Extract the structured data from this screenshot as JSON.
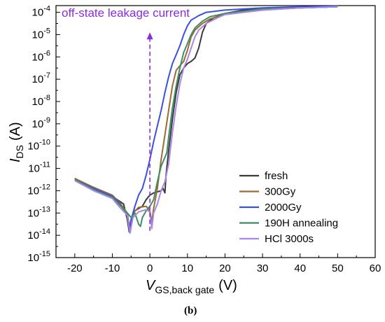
{
  "chart_data": {
    "type": "line",
    "y_scale": "log",
    "xlabel_main": "V",
    "xlabel_sub": "GS,back gate",
    "xlabel_unit": "(V)",
    "ylabel_main": "I",
    "ylabel_sub": "DS",
    "ylabel_unit": "(A)",
    "xlim": [
      -25,
      60
    ],
    "ylim_exp": [
      -15,
      -3.7
    ],
    "x_ticks": [
      -20,
      -10,
      0,
      10,
      20,
      30,
      40,
      50,
      60
    ],
    "x_tick_labels": [
      "-20",
      "-10",
      "0",
      "10",
      "20",
      "30",
      "40",
      "50",
      "60"
    ],
    "y_tick_exps": [
      -15,
      -14,
      -13,
      -12,
      -11,
      -10,
      -9,
      -8,
      -7,
      -6,
      -5,
      -4
    ],
    "y_tick_labels": [
      "-15",
      "-14",
      "-13",
      "-12",
      "-11",
      "-10",
      "-9",
      "-8",
      "-7",
      "-6",
      "-5",
      "-4"
    ],
    "y_tick_base": "10",
    "legend_position": "bottom-right",
    "annotation": {
      "text": "off-state leakage current",
      "color": "#8A2BE2",
      "arrow_x": 0,
      "arrow_from_exp": -13.8,
      "arrow_to_exp": -4.9
    },
    "panel_label": "(b)",
    "series": [
      {
        "name": "fresh",
        "color": "#3a3a3a",
        "points": [
          [
            -20,
            -11.45
          ],
          [
            -15,
            -11.9
          ],
          [
            -10,
            -12.25
          ],
          [
            -7,
            -12.6
          ],
          [
            -6,
            -13.3
          ],
          [
            -5.5,
            -13.85
          ],
          [
            -5,
            -13.3
          ],
          [
            -4,
            -12.9
          ],
          [
            -2,
            -12.7
          ],
          [
            -1,
            -12.4
          ],
          [
            0,
            -12.2
          ],
          [
            1,
            -12.1
          ],
          [
            2,
            -12.05
          ],
          [
            3,
            -12.0
          ],
          [
            3.5,
            -11.9
          ],
          [
            4,
            -12.1
          ],
          [
            4.3,
            -11.3
          ],
          [
            5,
            -10.2
          ],
          [
            6,
            -8.8
          ],
          [
            7,
            -7.6
          ],
          [
            8,
            -6.8
          ],
          [
            9,
            -6.5
          ],
          [
            10,
            -6.3
          ],
          [
            11,
            -6.2
          ],
          [
            12,
            -6.05
          ],
          [
            13,
            -5.6
          ],
          [
            14,
            -4.9
          ],
          [
            15,
            -4.5
          ],
          [
            17,
            -4.25
          ],
          [
            20,
            -4.05
          ],
          [
            25,
            -3.9
          ],
          [
            30,
            -3.85
          ],
          [
            40,
            -3.8
          ],
          [
            50,
            -3.75
          ]
        ]
      },
      {
        "name": "300Gy",
        "color": "#9B6A35",
        "points": [
          [
            -20,
            -11.45
          ],
          [
            -15,
            -11.85
          ],
          [
            -10,
            -12.2
          ],
          [
            -8,
            -12.55
          ],
          [
            -6,
            -13.0
          ],
          [
            -5.2,
            -13.85
          ],
          [
            -4.5,
            -13.0
          ],
          [
            -3,
            -12.75
          ],
          [
            -1,
            -12.7
          ],
          [
            0,
            -12.9
          ],
          [
            0.5,
            -13.4
          ],
          [
            1,
            -12.8
          ],
          [
            2,
            -11.9
          ],
          [
            3,
            -10.6
          ],
          [
            4,
            -9.5
          ],
          [
            5,
            -8.4
          ],
          [
            6,
            -7.3
          ],
          [
            7,
            -6.6
          ],
          [
            8,
            -6.4
          ],
          [
            9,
            -6.2
          ],
          [
            10,
            -5.7
          ],
          [
            11,
            -5.1
          ],
          [
            12,
            -4.8
          ],
          [
            14,
            -4.5
          ],
          [
            16,
            -4.3
          ],
          [
            20,
            -4.1
          ],
          [
            30,
            -3.9
          ],
          [
            40,
            -3.8
          ],
          [
            50,
            -3.75
          ]
        ]
      },
      {
        "name": "2000Gy",
        "color": "#3B4FE0",
        "points": [
          [
            -20,
            -11.5
          ],
          [
            -15,
            -11.9
          ],
          [
            -10,
            -12.25
          ],
          [
            -8,
            -12.6
          ],
          [
            -6,
            -13.1
          ],
          [
            -5.5,
            -13.7
          ],
          [
            -5,
            -13.3
          ],
          [
            -4,
            -12.7
          ],
          [
            -3,
            -12.2
          ],
          [
            -2,
            -11.9
          ],
          [
            -1,
            -11.3
          ],
          [
            0,
            -10.6
          ],
          [
            1,
            -9.8
          ],
          [
            2,
            -9.1
          ],
          [
            3,
            -8.4
          ],
          [
            4,
            -7.6
          ],
          [
            5,
            -6.9
          ],
          [
            6,
            -6.3
          ],
          [
            7,
            -5.9
          ],
          [
            8,
            -5.5
          ],
          [
            9,
            -5.0
          ],
          [
            10,
            -4.6
          ],
          [
            11,
            -4.35
          ],
          [
            13,
            -4.15
          ],
          [
            15,
            -4.0
          ],
          [
            20,
            -3.9
          ],
          [
            30,
            -3.8
          ],
          [
            40,
            -3.75
          ],
          [
            50,
            -3.72
          ]
        ]
      },
      {
        "name": "190H annealing",
        "color": "#3E8E62",
        "points": [
          [
            -20,
            -11.5
          ],
          [
            -15,
            -11.95
          ],
          [
            -10,
            -12.3
          ],
          [
            -8,
            -12.65
          ],
          [
            -6,
            -13.0
          ],
          [
            -5,
            -13.2
          ],
          [
            -4,
            -13.0
          ],
          [
            -3,
            -13.5
          ],
          [
            -2.5,
            -13.6
          ],
          [
            -2,
            -13.2
          ],
          [
            -1,
            -12.9
          ],
          [
            0,
            -12.7
          ],
          [
            1,
            -12.4
          ],
          [
            2,
            -11.6
          ],
          [
            3,
            -10.9
          ],
          [
            4,
            -10.5
          ],
          [
            4.5,
            -10.3
          ],
          [
            5,
            -9.6
          ],
          [
            6,
            -8.3
          ],
          [
            7,
            -7.3
          ],
          [
            8,
            -6.5
          ],
          [
            9,
            -5.8
          ],
          [
            10,
            -5.4
          ],
          [
            11,
            -5.0
          ],
          [
            12,
            -4.7
          ],
          [
            14,
            -4.4
          ],
          [
            16,
            -4.2
          ],
          [
            20,
            -4.05
          ],
          [
            30,
            -3.85
          ],
          [
            40,
            -3.8
          ],
          [
            50,
            -3.75
          ]
        ]
      },
      {
        "name": "HCl 3000s",
        "color": "#A987E6",
        "points": [
          [
            -20,
            -11.55
          ],
          [
            -15,
            -12.0
          ],
          [
            -10,
            -12.35
          ],
          [
            -8,
            -12.75
          ],
          [
            -6,
            -13.1
          ],
          [
            -5.3,
            -13.9
          ],
          [
            -4.5,
            -13.2
          ],
          [
            -3,
            -12.95
          ],
          [
            -1,
            -12.85
          ],
          [
            0,
            -12.95
          ],
          [
            0.5,
            -13.7
          ],
          [
            1,
            -13.0
          ],
          [
            2,
            -12.6
          ],
          [
            3,
            -12.0
          ],
          [
            4,
            -11.6
          ],
          [
            5,
            -10.8
          ],
          [
            6,
            -9.4
          ],
          [
            7,
            -8.2
          ],
          [
            8,
            -7.2
          ],
          [
            9,
            -6.5
          ],
          [
            10,
            -6.1
          ],
          [
            11,
            -5.6
          ],
          [
            12,
            -5.1
          ],
          [
            13,
            -4.8
          ],
          [
            15,
            -4.5
          ],
          [
            18,
            -4.25
          ],
          [
            20,
            -4.1
          ],
          [
            30,
            -3.9
          ],
          [
            40,
            -3.8
          ],
          [
            50,
            -3.75
          ]
        ]
      }
    ]
  }
}
